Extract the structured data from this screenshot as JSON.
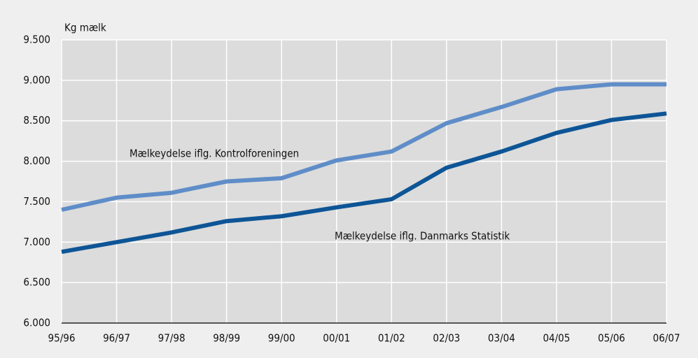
{
  "chart_data": {
    "type": "line",
    "y_axis_label": "Kg mælk",
    "categories": [
      "95/96",
      "96/97",
      "97/98",
      "98/99",
      "99/00",
      "00/01",
      "01/02",
      "02/03",
      "03/04",
      "04/05",
      "05/06",
      "06/07"
    ],
    "series": [
      {
        "name": "Mælkeydelse iflg. Kontrolforeningen",
        "color": "#5f8dc8",
        "values": [
          7400,
          7550,
          7610,
          7750,
          7790,
          8010,
          8120,
          8470,
          8670,
          8890,
          8950,
          8950
        ]
      },
      {
        "name": "Mælkeydelse iflg. Danmarks Statistik",
        "color": "#0d5596",
        "values": [
          6880,
          7000,
          7120,
          7260,
          7320,
          7430,
          7530,
          7920,
          8120,
          8350,
          8510,
          8590
        ]
      }
    ],
    "ylim": [
      6000,
      9500
    ],
    "yticks": [
      {
        "value": 6000,
        "label": "6.000"
      },
      {
        "value": 6500,
        "label": "6.500"
      },
      {
        "value": 7000,
        "label": "7.000"
      },
      {
        "value": 7500,
        "label": "7.500"
      },
      {
        "value": 8000,
        "label": "8.000"
      },
      {
        "value": 8500,
        "label": "8.500"
      },
      {
        "value": 9000,
        "label": "9.000"
      },
      {
        "value": 9500,
        "label": "9.500"
      }
    ],
    "grid": true
  }
}
